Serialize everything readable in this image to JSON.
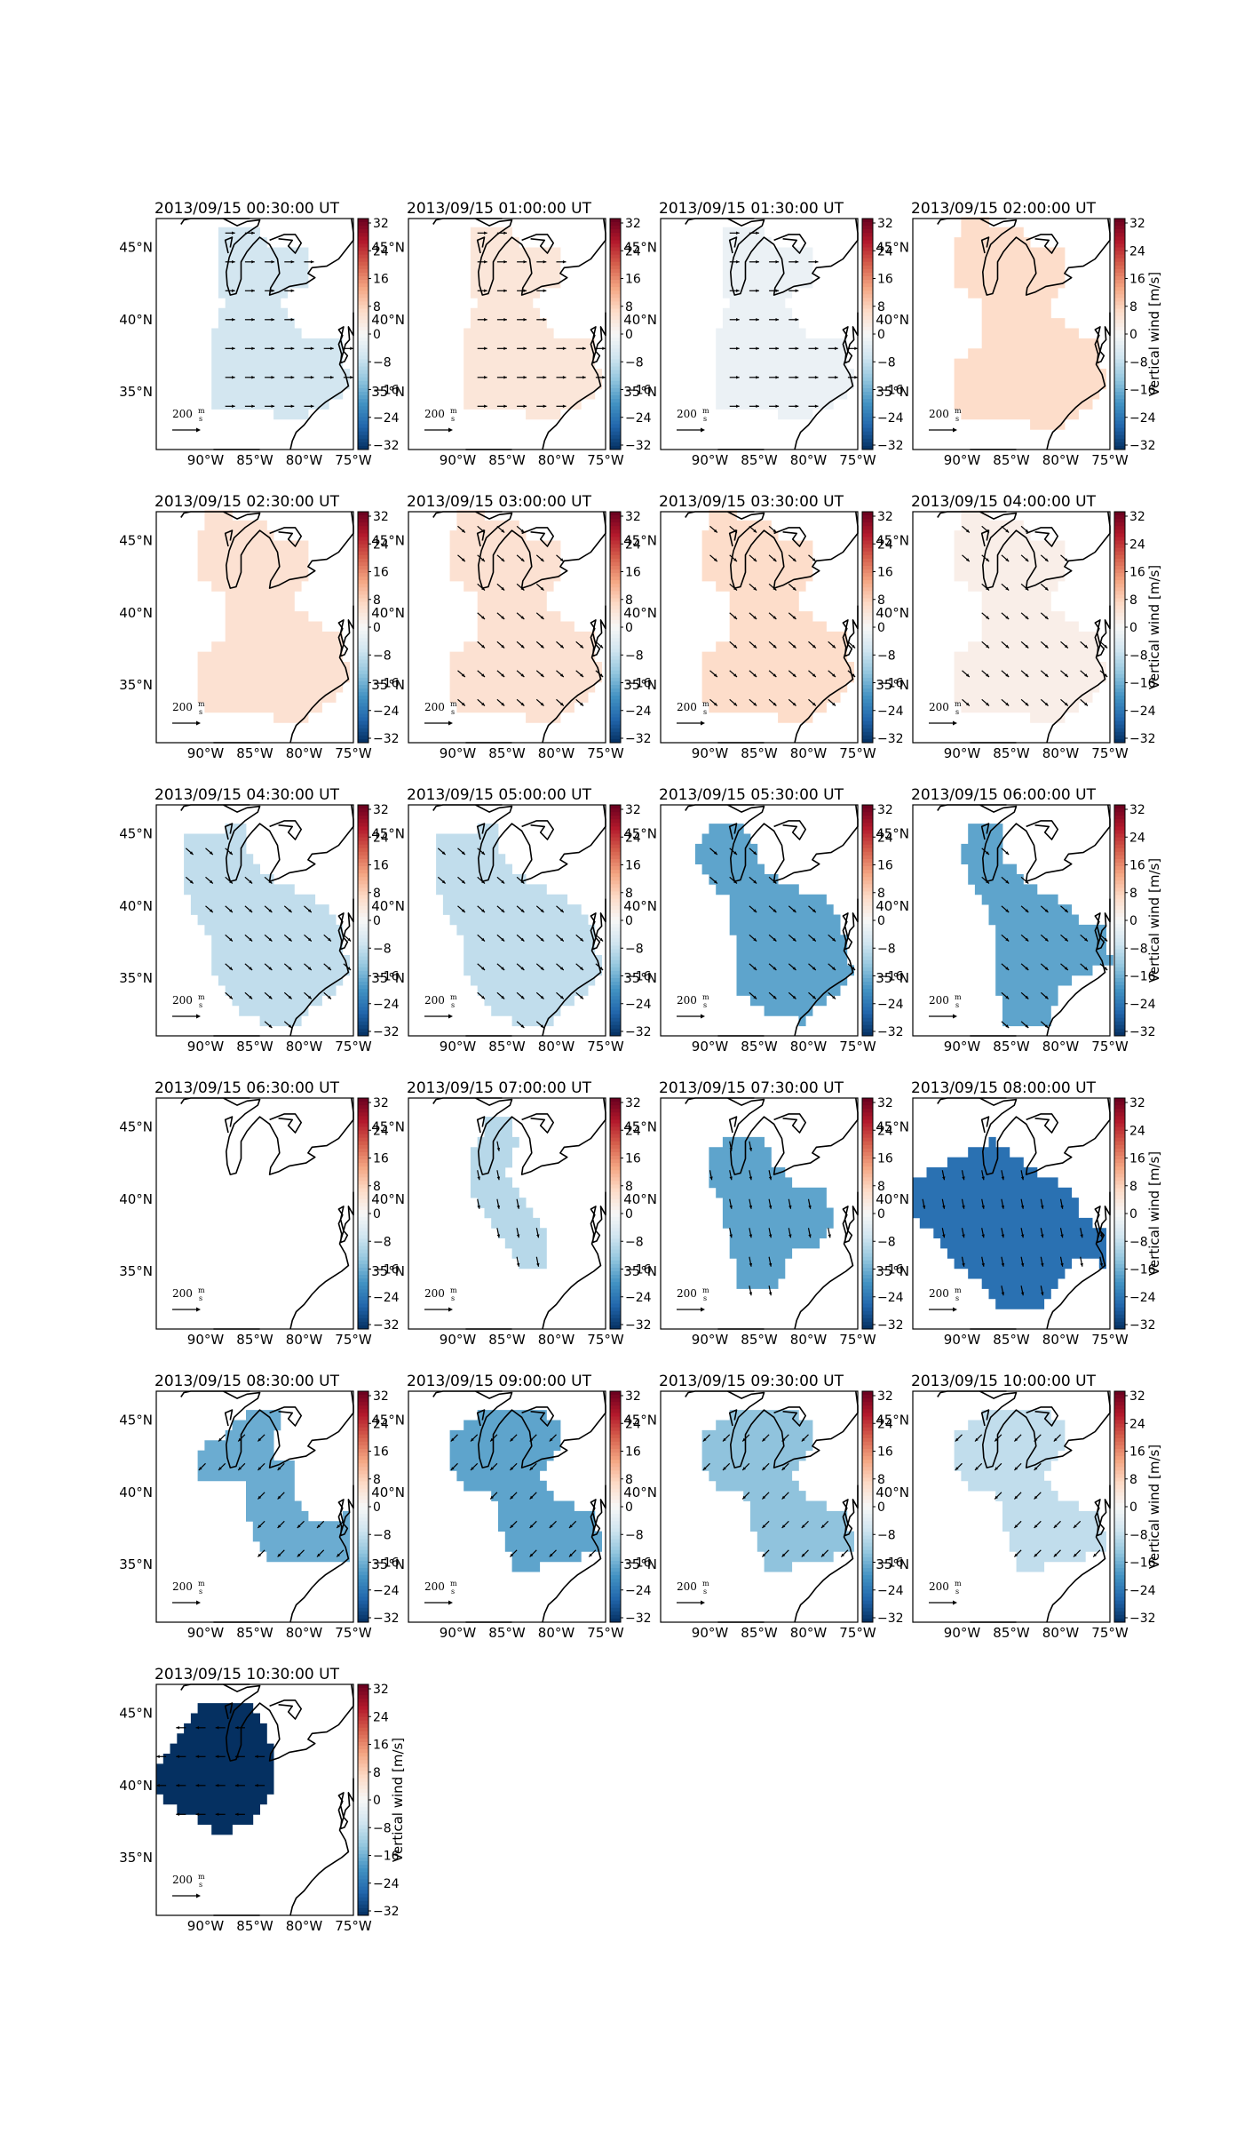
{
  "figure": {
    "colorbar": {
      "label": "Vertical wind [m/s]",
      "ticks": [
        "32",
        "24",
        "16",
        "8",
        "0",
        "−8",
        "−16",
        "−24",
        "−32"
      ],
      "vmin": -32,
      "vmax": 32,
      "colormap": "RdBu_r",
      "colors": [
        "#053061",
        "#2166ac",
        "#4393c3",
        "#92c5de",
        "#d1e5f0",
        "#f7f7f7",
        "#fddbc7",
        "#f4a582",
        "#d6604d",
        "#b2182b",
        "#67001f"
      ]
    },
    "map": {
      "lon_labels": [
        "90°W",
        "85°W",
        "80°W",
        "75°W"
      ],
      "lat_labels": [
        "45°N",
        "40°N",
        "35°N"
      ],
      "lon_range": [
        -95,
        -75
      ],
      "lat_range": [
        31,
        47
      ],
      "coast_color": "#000000"
    },
    "quiver_key": {
      "label": "200",
      "unit_num": "m",
      "unit_den": "s"
    },
    "panels": [
      {
        "title": "2013/09/15 00:30:00 UT",
        "value": -6,
        "region": "A",
        "arrow": "east"
      },
      {
        "title": "2013/09/15 01:00:00 UT",
        "value": 4,
        "region": "A",
        "arrow": "east"
      },
      {
        "title": "2013/09/15 01:30:00 UT",
        "value": -2,
        "region": "A",
        "arrow": "east"
      },
      {
        "title": "2013/09/15 02:00:00 UT",
        "value": 6,
        "region": "B",
        "arrow": "none"
      },
      {
        "title": "2013/09/15 02:30:00 UT",
        "value": 5,
        "region": "B",
        "arrow": "none"
      },
      {
        "title": "2013/09/15 03:00:00 UT",
        "value": 5,
        "region": "B",
        "arrow": "southeast"
      },
      {
        "title": "2013/09/15 03:30:00 UT",
        "value": 6,
        "region": "B",
        "arrow": "southeast"
      },
      {
        "title": "2013/09/15 04:00:00 UT",
        "value": 2,
        "region": "B",
        "arrow": "southeast"
      },
      {
        "title": "2013/09/15 04:30:00 UT",
        "value": -8,
        "region": "C",
        "arrow": "southeast"
      },
      {
        "title": "2013/09/15 05:00:00 UT",
        "value": -8,
        "region": "C",
        "arrow": "southeast"
      },
      {
        "title": "2013/09/15 05:30:00 UT",
        "value": -17,
        "region": "D",
        "arrow": "southeast"
      },
      {
        "title": "2013/09/15 06:00:00 UT",
        "value": -17,
        "region": "E",
        "arrow": "southeast"
      },
      {
        "title": "2013/09/15 06:30:00 UT",
        "value": null,
        "region": "none",
        "arrow": "none"
      },
      {
        "title": "2013/09/15 07:00:00 UT",
        "value": -9,
        "region": "F",
        "arrow": "south"
      },
      {
        "title": "2013/09/15 07:30:00 UT",
        "value": -17,
        "region": "G",
        "arrow": "south"
      },
      {
        "title": "2013/09/15 08:00:00 UT",
        "value": -24,
        "region": "H",
        "arrow": "south"
      },
      {
        "title": "2013/09/15 08:30:00 UT",
        "value": -16,
        "region": "I",
        "arrow": "southwest"
      },
      {
        "title": "2013/09/15 09:00:00 UT",
        "value": -17,
        "region": "J",
        "arrow": "southwest"
      },
      {
        "title": "2013/09/15 09:30:00 UT",
        "value": -13,
        "region": "J",
        "arrow": "southwest"
      },
      {
        "title": "2013/09/15 10:00:00 UT",
        "value": -8,
        "region": "J",
        "arrow": "southwest"
      },
      {
        "title": "2013/09/15 10:30:00 UT",
        "value": -32,
        "region": "K",
        "arrow": "west"
      }
    ]
  }
}
